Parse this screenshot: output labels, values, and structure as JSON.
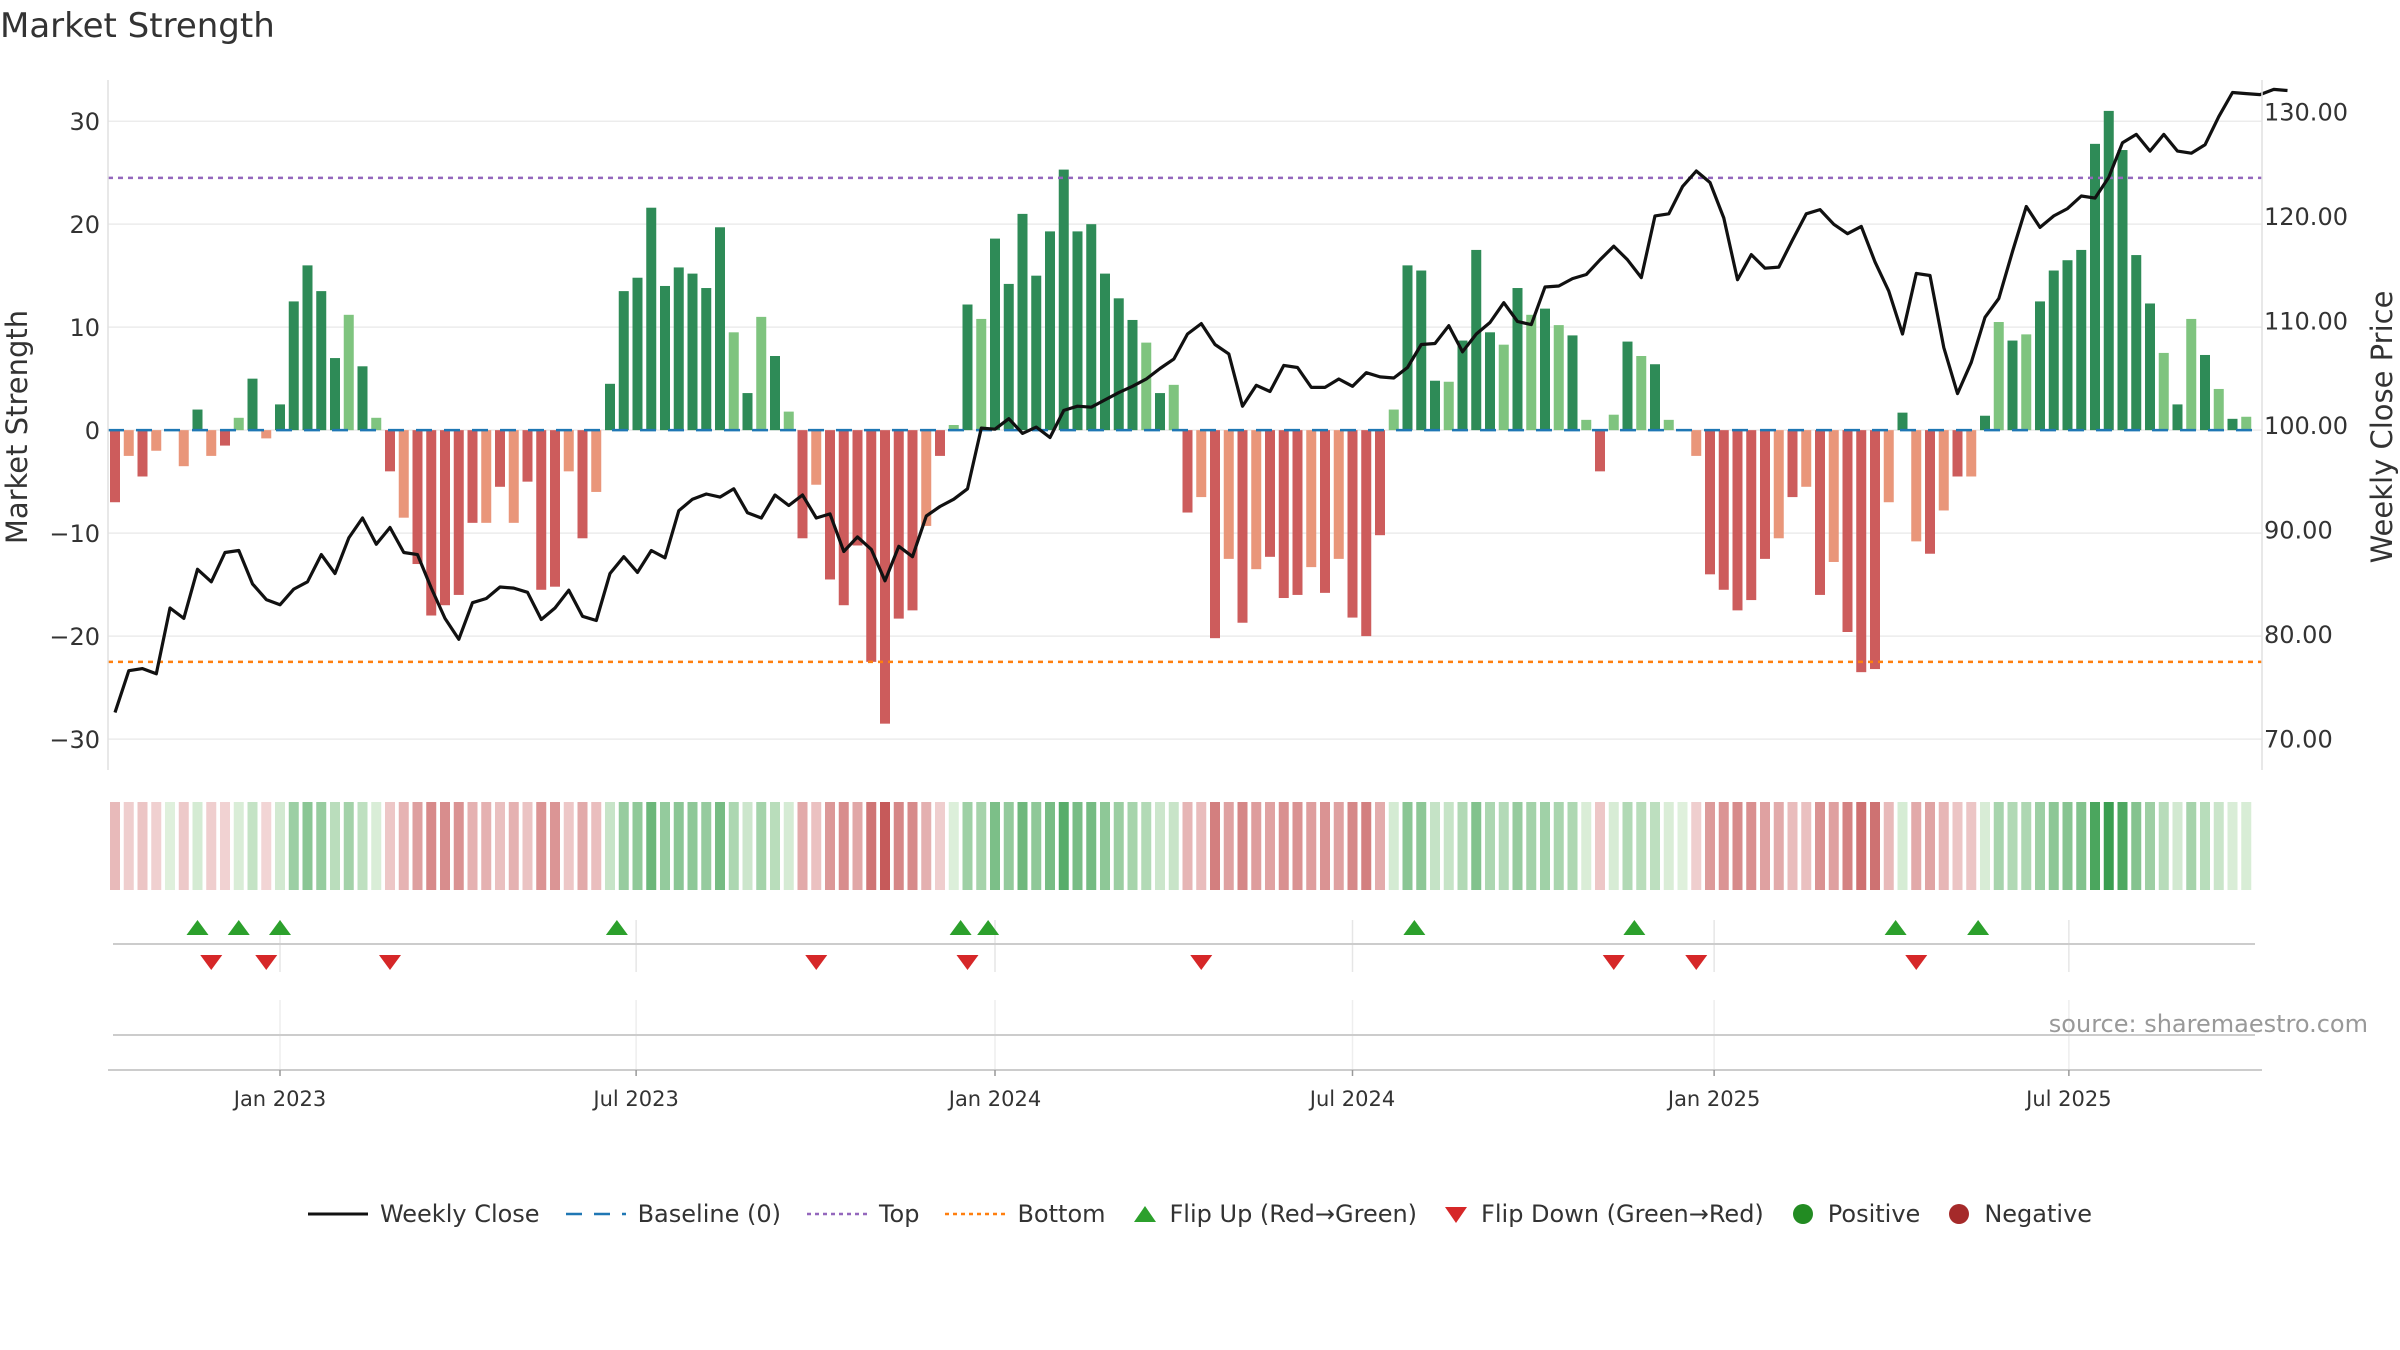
{
  "title": "Market Strength",
  "source": "source: sharemaestro.com",
  "chart_data": {
    "type": "bar+line",
    "title": "Market Strength",
    "ylabel_left": "Market Strength",
    "ylabel_right": "Weekly Close Price",
    "y_left_range": [
      -33,
      34
    ],
    "y_left_ticks": [
      30,
      20,
      10,
      0,
      -10,
      -20,
      -30
    ],
    "y_left_tick_labels": [
      "30",
      "20",
      "10",
      "0",
      "−10",
      "−20",
      "−30"
    ],
    "y_right_range": [
      67,
      133
    ],
    "y_right_ticks": [
      130,
      120,
      110,
      100,
      90,
      80,
      70
    ],
    "y_right_tick_labels": [
      "130.00",
      "120.00",
      "110.00",
      "100.00",
      "90.00",
      "80.00",
      "70.00"
    ],
    "x_week_count": 157,
    "x_start": "2022-10-10",
    "x_ticks": [
      {
        "label": "Jan 2023",
        "week": 12
      },
      {
        "label": "Jul 2023",
        "week": 37.9
      },
      {
        "label": "Jan 2024",
        "week": 64
      },
      {
        "label": "Jul 2024",
        "week": 90
      },
      {
        "label": "Jan 2025",
        "week": 116.3
      },
      {
        "label": "Jul 2025",
        "week": 142.1
      }
    ],
    "top_line": 24.5,
    "bottom_line": -22.5,
    "colors": {
      "pos_dark": "#2e8b57",
      "pos_light": "#7fc47f",
      "neg_dark": "#cd5c5c",
      "neg_light": "#e9967a",
      "price": "#111111",
      "baseline": "#1f77b4",
      "top": "#9467bd",
      "bottom": "#ff7f0e",
      "flip_up": "#2ca02c",
      "flip_down": "#d62728",
      "positive": "#228b22",
      "negative": "#a52a2a"
    },
    "series": [
      {
        "name": "Market Strength",
        "values": [
          -7,
          -2.5,
          -4.5,
          -2,
          0,
          -3.5,
          2,
          -2.5,
          -1.5,
          1.2,
          5,
          -0.8,
          2.5,
          12.5,
          16,
          13.5,
          7,
          11.2,
          6.2,
          1.2,
          -4,
          -8.5,
          -13,
          -18,
          -17,
          -16,
          -9,
          -9,
          -5.5,
          -9,
          -5,
          -15.5,
          -15.2,
          -4,
          -10.5,
          -6,
          4.5,
          13.5,
          14.8,
          21.6,
          14,
          15.8,
          15.2,
          13.8,
          19.7,
          9.5,
          3.6,
          11,
          7.2,
          1.8,
          -10.5,
          -5.3,
          -14.5,
          -17,
          -11.2,
          -22.5,
          -28.5,
          -18.3,
          -17.5,
          -9.3,
          -2.5,
          0.5,
          12.2,
          10.8,
          18.6,
          14.2,
          21,
          15,
          19.3,
          25.3,
          19.3,
          20,
          15.2,
          12.8,
          10.7,
          8.5,
          3.6,
          4.4,
          -8,
          -6.5,
          -20.2,
          -12.5,
          -18.7,
          -13.5,
          -12.3,
          -16.3,
          -16,
          -13.3,
          -15.8,
          -12.5,
          -18.2,
          -20,
          -10.2,
          2,
          16,
          15.5,
          4.8,
          4.7,
          8.7,
          17.5,
          9.5,
          8.3,
          13.8,
          11.2,
          11.8,
          10.2,
          9.2,
          1,
          -4,
          1.5,
          8.6,
          7.2,
          6.4,
          1,
          0,
          -2.5,
          -14,
          -15.5,
          -17.5,
          -16.5,
          -12.5,
          -10.5,
          -6.5,
          -5.5,
          -16,
          -12.8,
          -19.6,
          -23.5,
          -23.2,
          -7,
          1.7,
          -10.8,
          -12,
          -7.8,
          -4.5,
          -4.5,
          1.4,
          10.5,
          8.7,
          9.3,
          12.5,
          15.5,
          16.5,
          17.5,
          27.8,
          31,
          27.2,
          17,
          12.3,
          7.5,
          2.5,
          10.8,
          7.3,
          4,
          1.1,
          1.3
        ]
      },
      {
        "name": "Weekly Close",
        "values": [
          72.5,
          76.5,
          76.7,
          76.2,
          82.5,
          81.5,
          86.2,
          85,
          87.8,
          88,
          84.8,
          83.3,
          82.8,
          84.3,
          85,
          87.6,
          85.8,
          89.2,
          91.1,
          88.6,
          90.2,
          87.8,
          87.6,
          84.4,
          81.5,
          79.5,
          83,
          83.4,
          84.5,
          84.4,
          84,
          81.4,
          82.5,
          84.2,
          81.7,
          81.3,
          85.8,
          87.4,
          85.9,
          88,
          87.3,
          91.8,
          92.9,
          93.4,
          93.1,
          93.9,
          91.6,
          91.1,
          93.3,
          92.3,
          93.3,
          91.1,
          91.5,
          87.9,
          89.3,
          88.1,
          85.1,
          88.4,
          87.4,
          91.3,
          92.2,
          92.9,
          93.9,
          99.7,
          99.6,
          100.6,
          99.2,
          99.8,
          98.8,
          101.4,
          101.8,
          101.7,
          102.4,
          103.1,
          103.7,
          104.4,
          105.4,
          106.3,
          108.7,
          109.7,
          107.7,
          106.8,
          101.8,
          103.8,
          103.2,
          105.7,
          105.5,
          103.6,
          103.6,
          104.4,
          103.7,
          105,
          104.6,
          104.5,
          105.5,
          107.7,
          107.8,
          109.5,
          107,
          108.7,
          109.8,
          111.7,
          109.9,
          109.6,
          113.2,
          113.3,
          114,
          114.4,
          115.8,
          117.1,
          115.8,
          114.1,
          120,
          120.2,
          122.8,
          124.3,
          123.2,
          119.8,
          113.9,
          116.3,
          115,
          115.1,
          117.7,
          120.2,
          120.6,
          119.2,
          118.3,
          119,
          115.6,
          112.8,
          108.7,
          114.5,
          114.3,
          107.4,
          103,
          106,
          110.3,
          112.1,
          116.6,
          120.9,
          118.9,
          120,
          120.7,
          121.9,
          121.7,
          123.7,
          127,
          127.8,
          126.2,
          127.8,
          126.2,
          126,
          126.8,
          129.5,
          131.8,
          131.7,
          131.6,
          132.1,
          132
        ]
      }
    ],
    "heat_strip": {
      "label": "strength heat strip",
      "source_series": "Market Strength"
    },
    "flip_up_weeks": [
      6,
      9,
      12,
      36.5,
      61.5,
      63.5,
      94.5,
      110.5,
      129.5,
      135.5
    ],
    "flip_down_weeks": [
      7,
      11,
      20,
      51,
      62,
      79,
      109,
      115,
      131
    ],
    "legend": [
      {
        "label": "Weekly Close",
        "symbol": "solid-line"
      },
      {
        "label": "Baseline (0)",
        "symbol": "dash-line"
      },
      {
        "label": "Top",
        "symbol": "dot-line"
      },
      {
        "label": "Bottom",
        "symbol": "dot-line"
      },
      {
        "label": "Flip Up (Red→Green)",
        "symbol": "triangle-up"
      },
      {
        "label": "Flip Down (Green→Red)",
        "symbol": "triangle-down"
      },
      {
        "label": "Positive",
        "symbol": "circle"
      },
      {
        "label": "Negative",
        "symbol": "circle"
      }
    ]
  }
}
